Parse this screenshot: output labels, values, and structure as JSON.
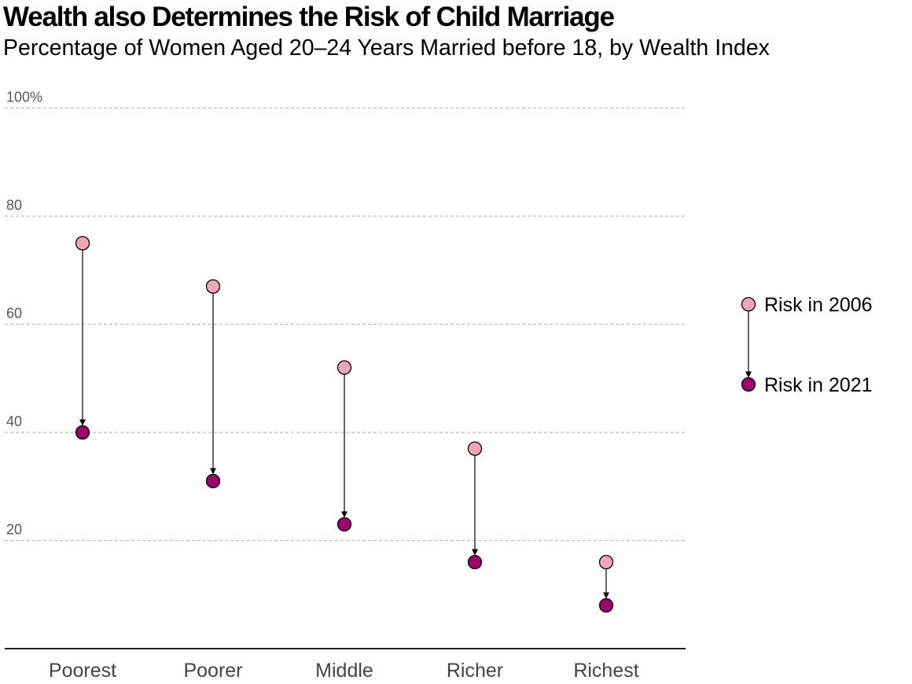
{
  "chart_data": {
    "type": "dumbbell",
    "title": "Wealth also Determines the Risk of Child Marriage",
    "subtitle": "Percentage of Women Aged 20–24 Years Married before 18, by Wealth Index",
    "categories": [
      "Poorest",
      "Poorer",
      "Middle",
      "Richer",
      "Richest"
    ],
    "series": [
      {
        "name": "Risk in 2006",
        "color": "#f4a4b8",
        "values": [
          75,
          67,
          52,
          37,
          16
        ]
      },
      {
        "name": "Risk in 2021",
        "color": "#a0006e",
        "values": [
          40,
          31,
          23,
          16,
          8
        ]
      }
    ],
    "y_ticks": [
      "100%",
      "80",
      "60",
      "40",
      "20"
    ],
    "y_tick_values": [
      100,
      80,
      60,
      40,
      20
    ],
    "ylim": [
      0,
      100
    ],
    "grid": true,
    "legend_position": "right"
  }
}
